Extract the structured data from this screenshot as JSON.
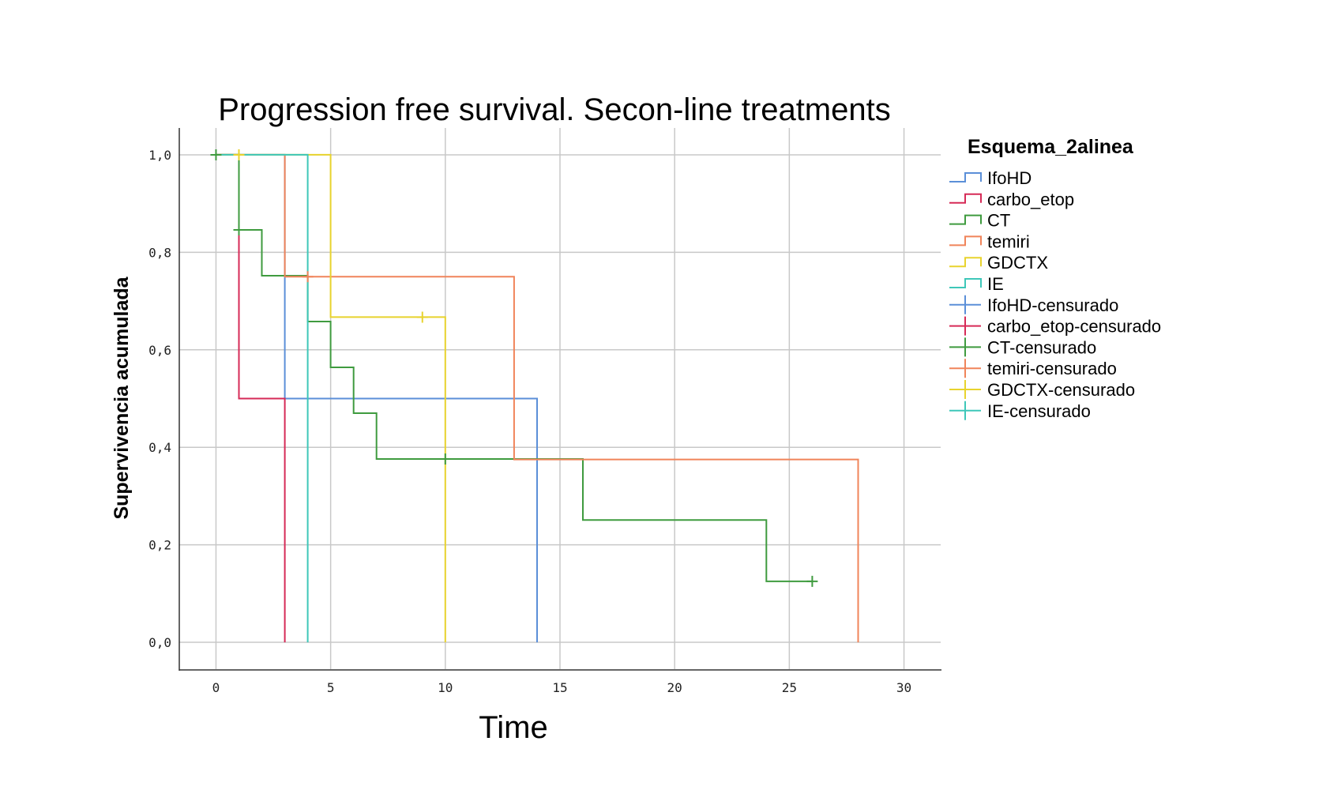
{
  "chart_data": {
    "type": "line",
    "title": "Progression free survival. Secon-line treatments",
    "xlabel": "Time",
    "ylabel": "Supervivencia acumulada",
    "xlim": [
      -1.6,
      31.6
    ],
    "ylim": [
      -0.055,
      1.055
    ],
    "x_ticks": [
      0,
      5,
      10,
      15,
      20,
      25,
      30
    ],
    "x_tick_labels": [
      "0",
      "5",
      "10",
      "15",
      "20",
      "25",
      "30"
    ],
    "y_ticks": [
      0,
      0.2,
      0.4,
      0.6,
      0.8,
      1.0
    ],
    "y_tick_labels": [
      "0,0",
      "0,2",
      "0,4",
      "0,6",
      "0,8",
      "1,0"
    ],
    "grid": true,
    "legend_title": "Esquema_2alinea",
    "legend_position": "right",
    "series": [
      {
        "name": "IfoHD",
        "color": "#5b8fd8",
        "x": [
          0,
          3,
          3,
          14,
          14
        ],
        "y": [
          1.0,
          1.0,
          0.5,
          0.5,
          0.0
        ]
      },
      {
        "name": "carbo_etop",
        "color": "#d62a57",
        "x": [
          0,
          1,
          1,
          3,
          3
        ],
        "y": [
          1.0,
          1.0,
          0.5,
          0.5,
          0.0
        ]
      },
      {
        "name": "CT",
        "color": "#3f9b3f",
        "x": [
          0,
          1,
          1,
          2,
          2,
          4,
          4,
          5,
          5,
          6,
          6,
          7,
          7,
          16,
          16,
          24,
          24,
          26
        ],
        "y": [
          1.0,
          1.0,
          0.846,
          0.846,
          0.752,
          0.752,
          0.658,
          0.658,
          0.564,
          0.564,
          0.47,
          0.47,
          0.376,
          0.376,
          0.251,
          0.251,
          0.125,
          0.125
        ]
      },
      {
        "name": "temiri",
        "color": "#f0845a",
        "x": [
          0,
          3,
          3,
          13,
          13,
          28,
          28
        ],
        "y": [
          1.0,
          1.0,
          0.75,
          0.75,
          0.375,
          0.375,
          0.0
        ]
      },
      {
        "name": "GDCTX",
        "color": "#e8d32e",
        "x": [
          0,
          5,
          5,
          10,
          10
        ],
        "y": [
          1.0,
          1.0,
          0.667,
          0.667,
          0.0
        ]
      },
      {
        "name": "IE",
        "color": "#3ec7b9",
        "x": [
          0,
          4,
          4
        ],
        "y": [
          1.0,
          1.0,
          0.0
        ]
      }
    ],
    "censored": [
      {
        "name": "IfoHD-censurado",
        "color": "#5b8fd8",
        "points": []
      },
      {
        "name": "carbo_etop-censurado",
        "color": "#d62a57",
        "points": []
      },
      {
        "name": "CT-censurado",
        "color": "#3f9b3f",
        "points": [
          [
            0,
            1.0
          ],
          [
            1,
            0.846
          ],
          [
            10,
            0.376
          ],
          [
            26,
            0.125
          ]
        ]
      },
      {
        "name": "temiri-censurado",
        "color": "#f0845a",
        "points": [
          [
            4,
            0.75
          ]
        ]
      },
      {
        "name": "GDCTX-censurado",
        "color": "#e8d32e",
        "points": [
          [
            1,
            1.0
          ],
          [
            9,
            0.667
          ]
        ]
      },
      {
        "name": "IE-censurado",
        "color": "#3ec7b9",
        "points": []
      }
    ]
  }
}
